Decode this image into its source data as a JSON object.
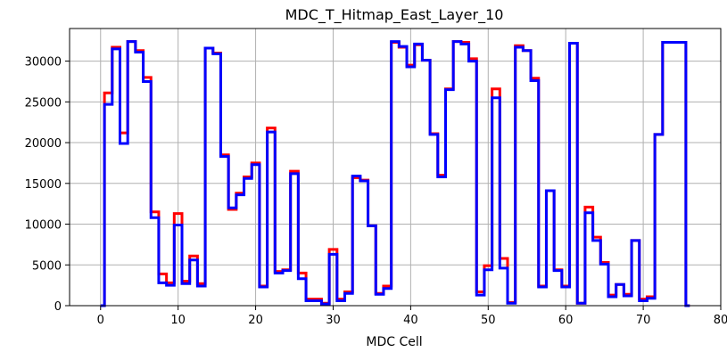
{
  "chart_data": {
    "type": "line",
    "drawstyle": "steps-mid",
    "title": "MDC_T_Hitmap_East_Layer_10",
    "xlabel": "MDC Cell",
    "ylabel": "",
    "xlim": [
      -4,
      80
    ],
    "ylim": [
      0,
      34000
    ],
    "xticks": [
      0,
      10,
      20,
      30,
      40,
      50,
      60,
      70,
      80
    ],
    "yticks": [
      0,
      5000,
      10000,
      15000,
      20000,
      25000,
      30000
    ],
    "grid": true,
    "x": [
      0,
      1,
      2,
      3,
      4,
      5,
      6,
      7,
      8,
      9,
      10,
      11,
      12,
      13,
      14,
      15,
      16,
      17,
      18,
      19,
      20,
      21,
      22,
      23,
      24,
      25,
      26,
      27,
      28,
      29,
      30,
      31,
      32,
      33,
      34,
      35,
      36,
      37,
      38,
      39,
      40,
      41,
      42,
      43,
      44,
      45,
      46,
      47,
      48,
      49,
      50,
      51,
      52,
      53,
      54,
      55,
      56,
      57,
      58,
      59,
      60,
      61,
      62,
      63,
      64,
      65,
      66,
      67,
      68,
      69,
      70,
      71,
      72,
      73,
      74,
      75,
      76
    ],
    "series": [
      {
        "color": "#ff0000",
        "values": [
          0,
          26100,
          31700,
          21200,
          32400,
          31300,
          28000,
          11500,
          3900,
          2800,
          11300,
          3000,
          6100,
          2700,
          31600,
          31000,
          18500,
          11800,
          13800,
          15800,
          17500,
          2400,
          21800,
          4200,
          4400,
          16500,
          4000,
          800,
          800,
          300,
          6900,
          800,
          1700,
          15700,
          15400,
          9800,
          1500,
          2400,
          32300,
          31700,
          29500,
          32000,
          30100,
          21100,
          16000,
          26600,
          32400,
          32300,
          30300,
          1700,
          4900,
          26600,
          5800,
          400,
          31900,
          31300,
          27900,
          2400,
          14100,
          4400,
          2400,
          32200,
          300,
          12100,
          8400,
          5300,
          1300,
          2600,
          1400,
          8000,
          800,
          1100,
          21000,
          32300,
          32300,
          32300,
          0
        ]
      },
      {
        "color": "#0000ff",
        "values": [
          0,
          24700,
          31500,
          19900,
          32400,
          31100,
          27500,
          10800,
          2800,
          2500,
          9900,
          2700,
          5600,
          2400,
          31600,
          30900,
          18300,
          12000,
          13600,
          15600,
          17300,
          2300,
          21300,
          4000,
          4300,
          16200,
          3300,
          600,
          600,
          200,
          6300,
          600,
          1500,
          15900,
          15300,
          9800,
          1400,
          2100,
          32400,
          31800,
          29300,
          32100,
          30100,
          21000,
          15800,
          26500,
          32400,
          32100,
          30000,
          1300,
          4400,
          25500,
          4600,
          300,
          31700,
          31300,
          27600,
          2300,
          14100,
          4300,
          2300,
          32200,
          300,
          11400,
          8000,
          5100,
          1100,
          2600,
          1200,
          8000,
          600,
          900,
          21000,
          32300,
          32300,
          32300,
          0
        ]
      }
    ]
  }
}
